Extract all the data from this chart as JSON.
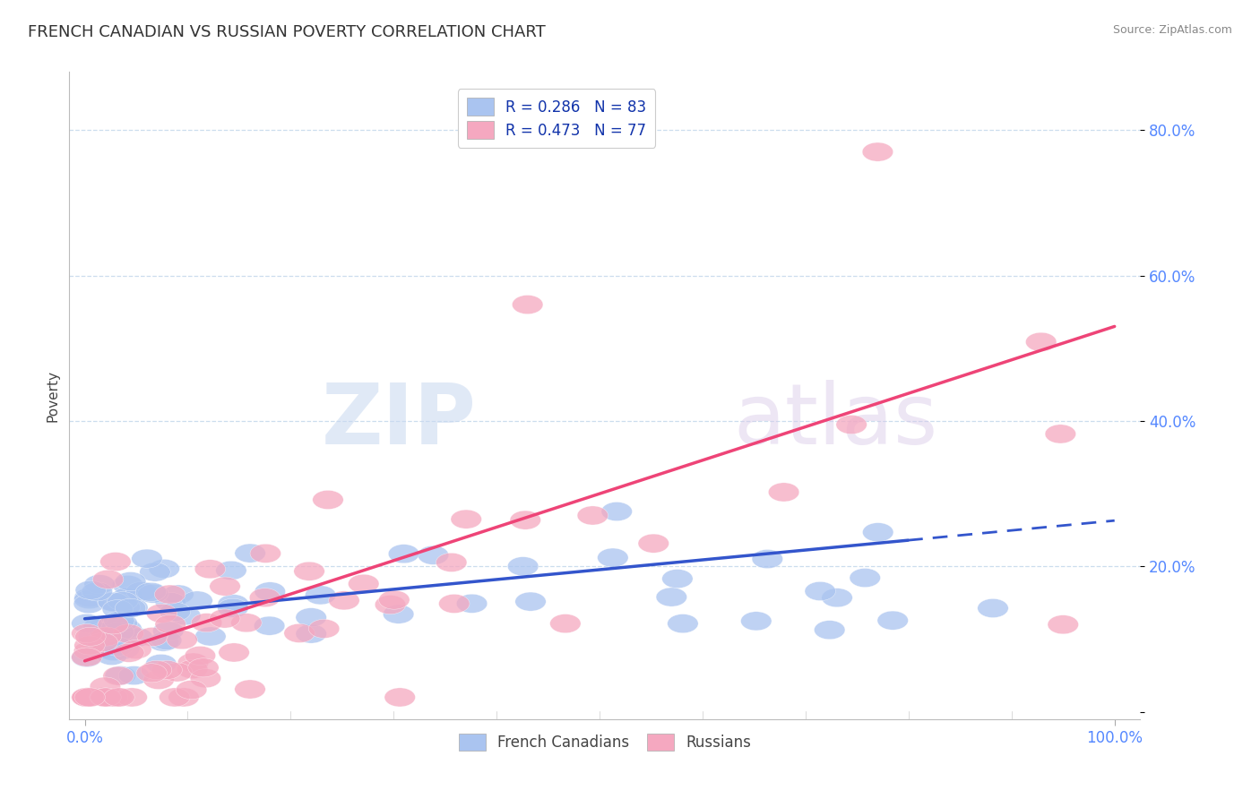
{
  "title": "FRENCH CANADIAN VS RUSSIAN POVERTY CORRELATION CHART",
  "source": "Source: ZipAtlas.com",
  "ylabel": "Poverty",
  "legend_r1": "R = 0.286   N = 83",
  "legend_r2": "R = 0.473   N = 77",
  "legend_label1": "French Canadians",
  "legend_label2": "Russians",
  "blue_color": "#aac4f0",
  "pink_color": "#f5a8c0",
  "blue_line_color": "#3355cc",
  "pink_line_color": "#ee4477",
  "watermark_zip": "ZIP",
  "watermark_atlas": "atlas",
  "blue_r": 0.286,
  "pink_r": 0.473,
  "blue_n": 83,
  "pink_n": 77,
  "ytick_color": "#5588ff",
  "xtick_color": "#5588ff",
  "legend_text_color": "#1133aa"
}
